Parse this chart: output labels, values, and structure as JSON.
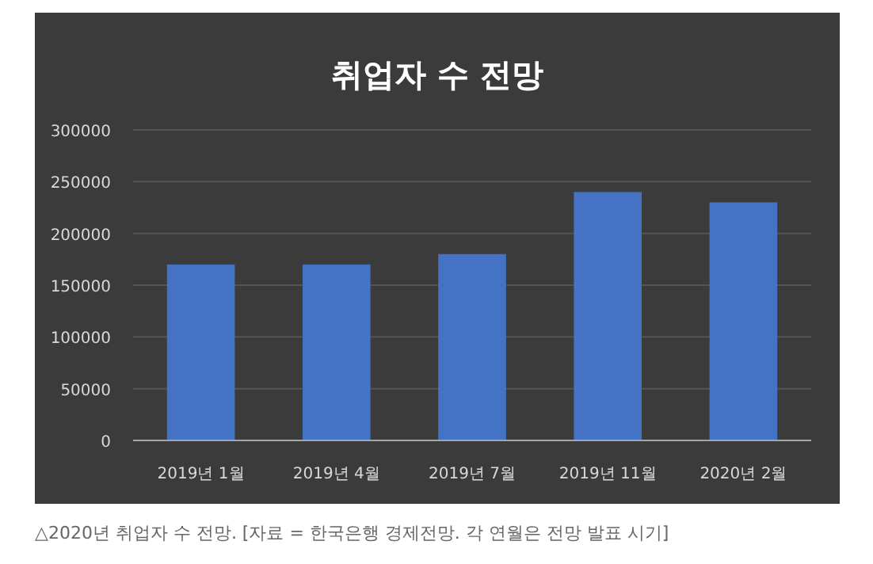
{
  "chart_data": {
    "type": "bar",
    "title": "취업자 수 전망",
    "categories": [
      "2019년 1월",
      "2019년 4월",
      "2019년 7월",
      "2019년 11월",
      "2020년 2월"
    ],
    "values": [
      170000,
      170000,
      180000,
      240000,
      230000
    ],
    "color": "#4472c4",
    "ylim": [
      0,
      300000
    ],
    "yticks": [
      0,
      50000,
      100000,
      150000,
      200000,
      250000,
      300000
    ],
    "grid": "y",
    "annotations": [
      "△2020년 취업자 수 전망. [자료 = 한국은행 경제전망. 각 연월은 전망 발표 시기]"
    ]
  }
}
